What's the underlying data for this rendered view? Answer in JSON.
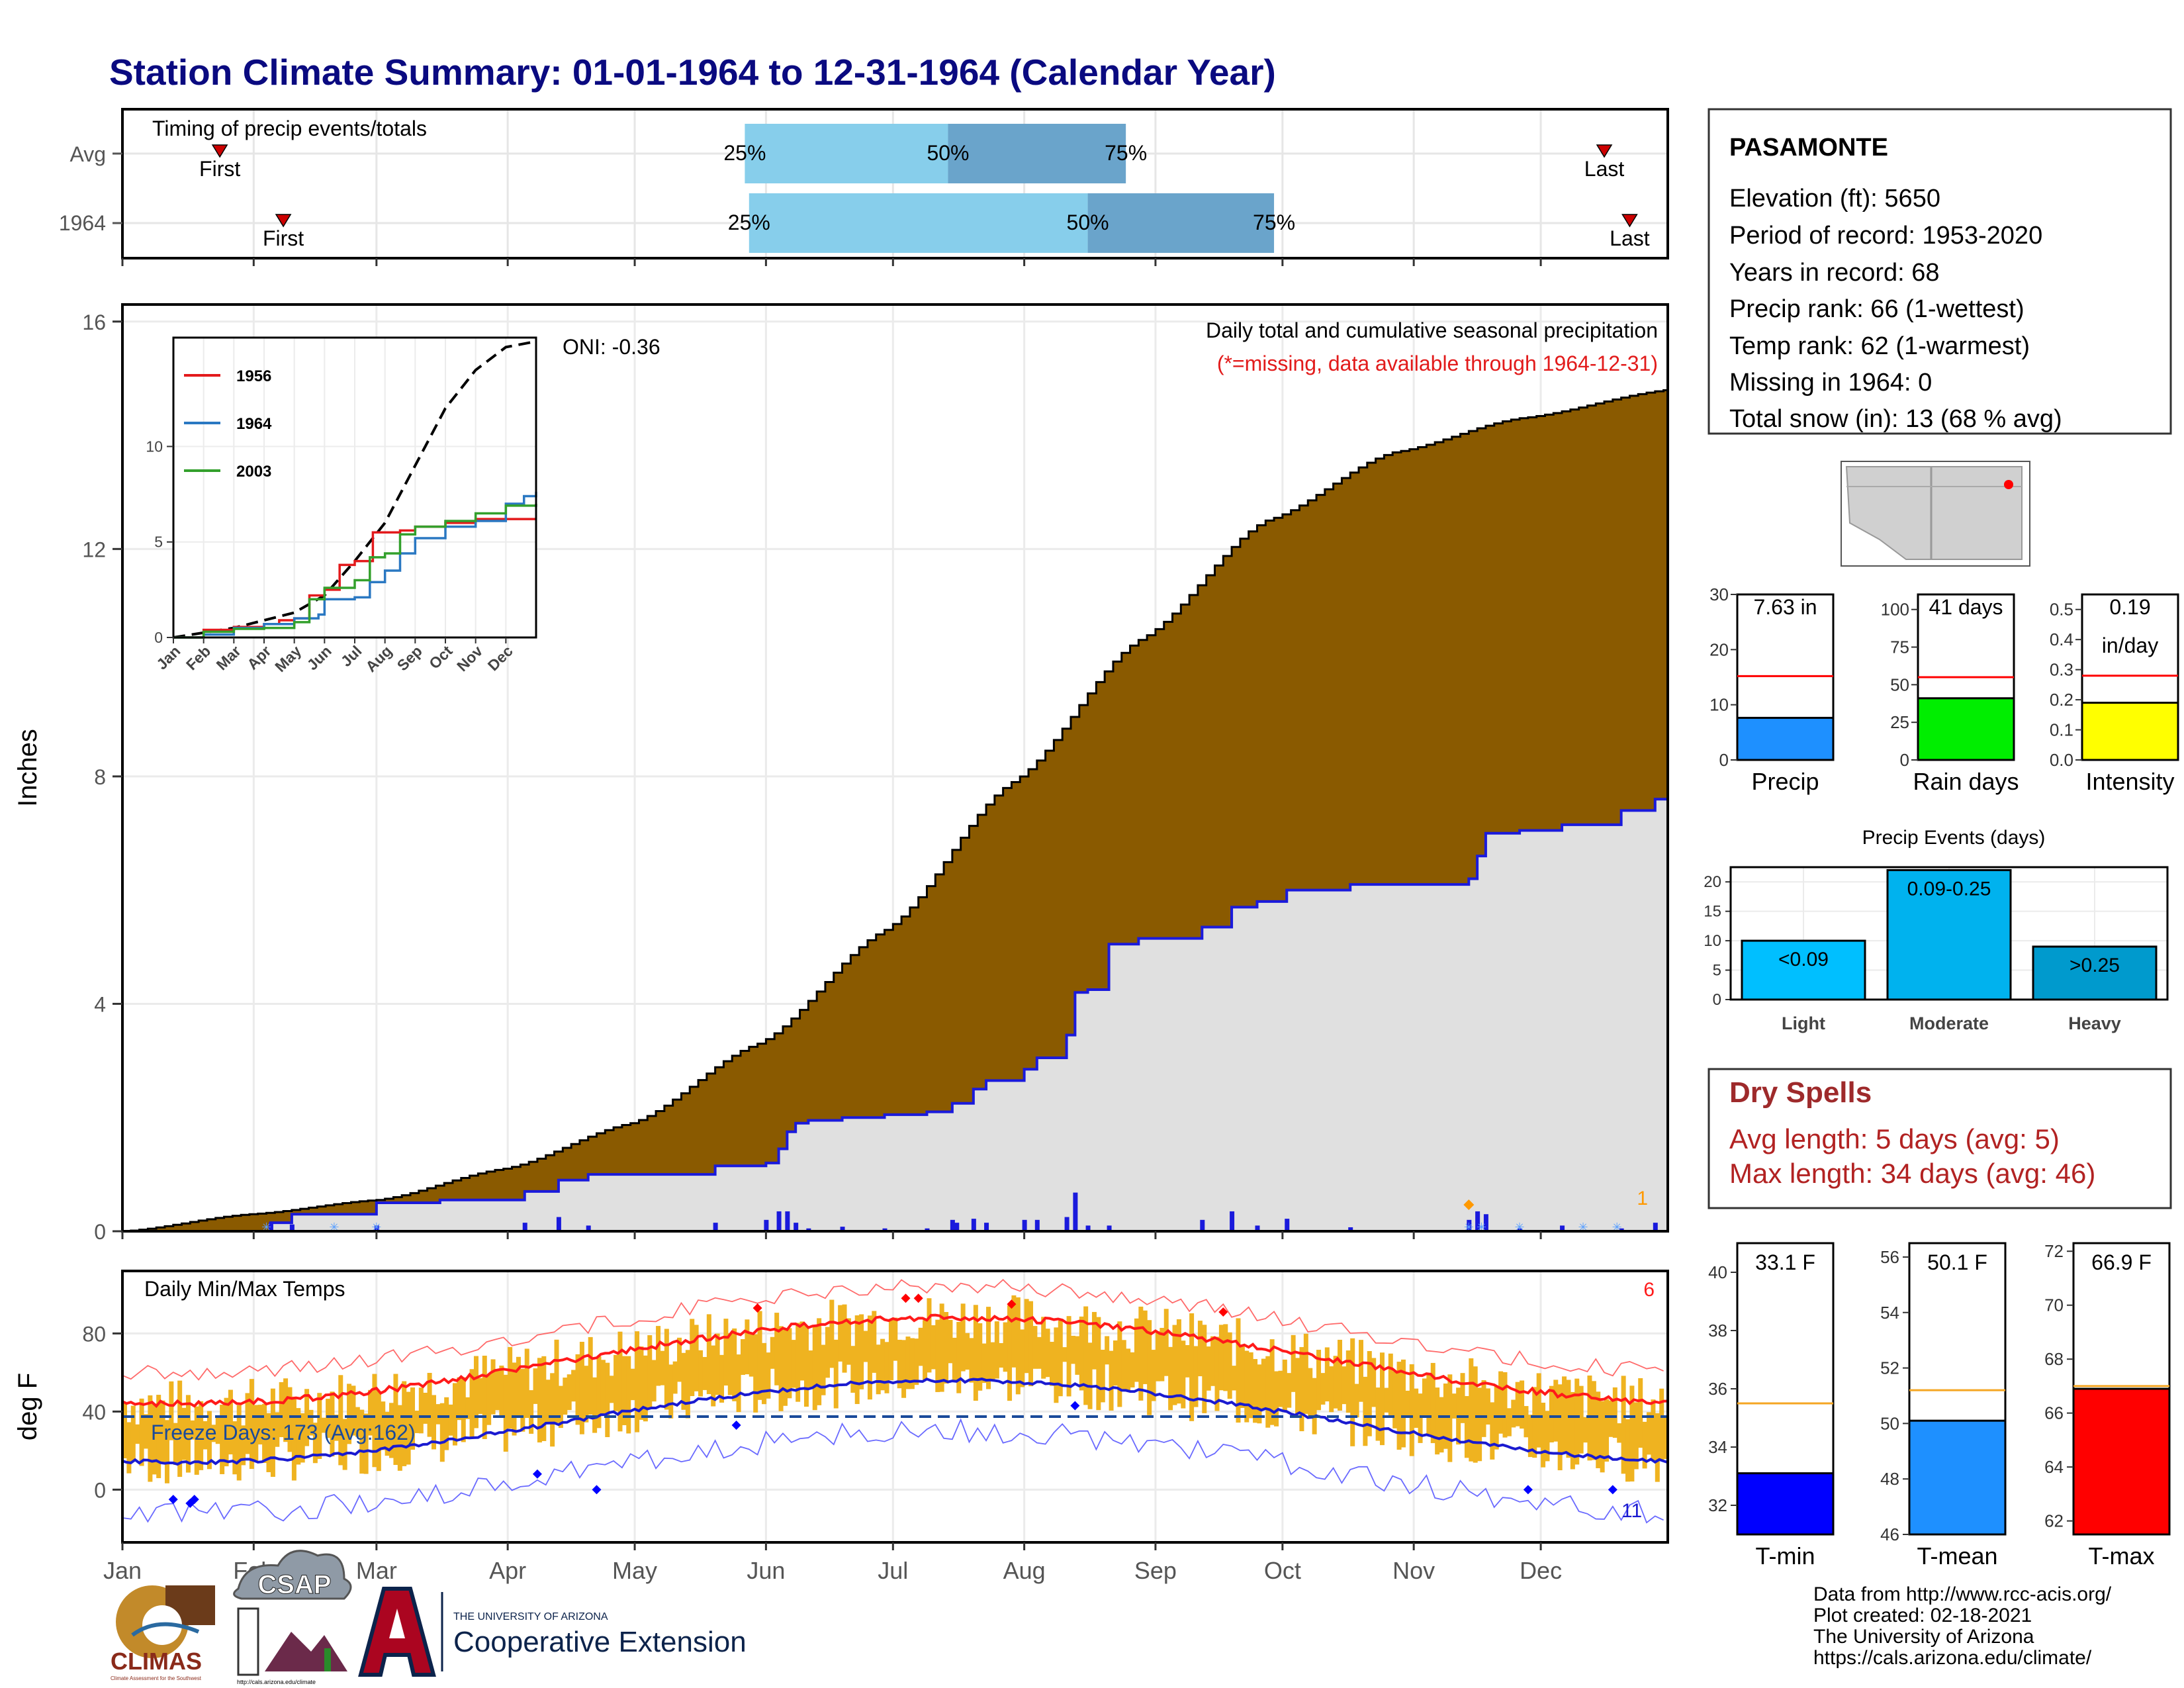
{
  "title": "Station Climate Summary: 01-01-1964 to 12-31-1964 (Calendar Year)",
  "colors": {
    "title": "#0a0a80",
    "cum_avg": "#8a5a00",
    "cum_year": "#e0e0e0",
    "cum_year_line": "#1a1adc",
    "daily_bar": "#1a1adc",
    "temp_bar": "#efb320",
    "max_norm": "#ff1a1a",
    "min_norm": "#1a1ad0",
    "timing_light": "#87ceeb",
    "timing_dark": "#6aa4cb",
    "dry_red": "#9e2a2b",
    "missing_note": "#e21b1b"
  },
  "timing": {
    "title": "Timing of precip events/totals",
    "rows": [
      {
        "label": "Avg",
        "first_doy": 23,
        "last_doy": 350,
        "p25": 147,
        "p50": 195,
        "p75": 237,
        "first_label": "First",
        "last_label": "Last"
      },
      {
        "label": "1964",
        "first_doy": 38,
        "last_doy": 356,
        "p25": 148,
        "p50": 228,
        "p75": 272,
        "first_label": "First",
        "last_label": "Last"
      }
    ],
    "pct_labels": [
      "25%",
      "50%",
      "75%"
    ]
  },
  "precip": {
    "ylabel": "Inches",
    "yticks": [
      0,
      4,
      8,
      12,
      16
    ],
    "title_line1": "Daily total and cumulative seasonal precipitation",
    "title_line2": "(*=missing, data available through 1964-12-31)",
    "oni": "ONI: -0.36",
    "snow_count": "1",
    "avg_cum_knots": [
      [
        0,
        0
      ],
      [
        30,
        0.3
      ],
      [
        60,
        0.55
      ],
      [
        90,
        1.1
      ],
      [
        120,
        1.9
      ],
      [
        150,
        3.3
      ],
      [
        180,
        5.3
      ],
      [
        210,
        7.9
      ],
      [
        240,
        10.4
      ],
      [
        270,
        12.5
      ],
      [
        300,
        13.7
      ],
      [
        330,
        14.3
      ],
      [
        365,
        14.8
      ]
    ],
    "year_cum_steps": [
      [
        0,
        0
      ],
      [
        35,
        0.15
      ],
      [
        40,
        0.3
      ],
      [
        60,
        0.5
      ],
      [
        75,
        0.55
      ],
      [
        95,
        0.7
      ],
      [
        103,
        0.9
      ],
      [
        110,
        1.0
      ],
      [
        140,
        1.15
      ],
      [
        152,
        1.2
      ],
      [
        155,
        1.45
      ],
      [
        157,
        1.75
      ],
      [
        159,
        1.9
      ],
      [
        162,
        1.95
      ],
      [
        170,
        2.0
      ],
      [
        180,
        2.05
      ],
      [
        190,
        2.1
      ],
      [
        196,
        2.25
      ],
      [
        201,
        2.5
      ],
      [
        204,
        2.65
      ],
      [
        213,
        2.85
      ],
      [
        216,
        3.05
      ],
      [
        223,
        3.45
      ],
      [
        225,
        4.2
      ],
      [
        228,
        4.25
      ],
      [
        233,
        5.05
      ],
      [
        240,
        5.15
      ],
      [
        255,
        5.35
      ],
      [
        262,
        5.7
      ],
      [
        268,
        5.8
      ],
      [
        275,
        6.0
      ],
      [
        290,
        6.1
      ],
      [
        318,
        6.2
      ],
      [
        320,
        6.6
      ],
      [
        322,
        7.0
      ],
      [
        330,
        7.05
      ],
      [
        340,
        7.15
      ],
      [
        354,
        7.4
      ],
      [
        362,
        7.6
      ],
      [
        365,
        7.63
      ]
    ],
    "daily_bars": [
      [
        35,
        0.15
      ],
      [
        40,
        0.12
      ],
      [
        60,
        0.1
      ],
      [
        95,
        0.15
      ],
      [
        103,
        0.25
      ],
      [
        110,
        0.1
      ],
      [
        140,
        0.15
      ],
      [
        152,
        0.2
      ],
      [
        155,
        0.35
      ],
      [
        157,
        0.35
      ],
      [
        159,
        0.15
      ],
      [
        162,
        0.05
      ],
      [
        170,
        0.08
      ],
      [
        180,
        0.05
      ],
      [
        190,
        0.05
      ],
      [
        196,
        0.2
      ],
      [
        197,
        0.15
      ],
      [
        201,
        0.22
      ],
      [
        204,
        0.15
      ],
      [
        213,
        0.2
      ],
      [
        216,
        0.2
      ],
      [
        223,
        0.25
      ],
      [
        225,
        0.68
      ],
      [
        228,
        0.1
      ],
      [
        233,
        0.1
      ],
      [
        255,
        0.2
      ],
      [
        262,
        0.35
      ],
      [
        268,
        0.1
      ],
      [
        275,
        0.22
      ],
      [
        290,
        0.07
      ],
      [
        318,
        0.2
      ],
      [
        320,
        0.35
      ],
      [
        322,
        0.3
      ],
      [
        330,
        0.05
      ],
      [
        340,
        0.1
      ],
      [
        354,
        0.05
      ],
      [
        362,
        0.15
      ]
    ],
    "snow_doy": [
      34,
      50,
      60,
      318,
      321,
      330,
      345,
      353
    ]
  },
  "inset": {
    "legend": [
      {
        "name": "1956",
        "color": "#e31a1c"
      },
      {
        "name": "1964",
        "color": "#2a78c2"
      },
      {
        "name": "2003",
        "color": "#33a02c"
      }
    ],
    "yticks": [
      0,
      5,
      10
    ],
    "months": [
      "Jan",
      "Feb",
      "Mar",
      "Apr",
      "May",
      "Jun",
      "Jul",
      "Aug",
      "Sep",
      "Oct",
      "Nov",
      "Dec"
    ],
    "avg_knots": [
      [
        0,
        0
      ],
      [
        2,
        0.5
      ],
      [
        4,
        1.3
      ],
      [
        5,
        2.2
      ],
      [
        6,
        4.0
      ],
      [
        7,
        6.0
      ],
      [
        8,
        9.0
      ],
      [
        9,
        12.0
      ],
      [
        10,
        14.0
      ],
      [
        11,
        15.2
      ],
      [
        12,
        15.5
      ]
    ],
    "series": {
      "1956": [
        [
          0,
          0
        ],
        [
          1,
          0.4
        ],
        [
          2,
          0.55
        ],
        [
          3,
          0.7
        ],
        [
          3.5,
          0.9
        ],
        [
          4,
          1.0
        ],
        [
          4.5,
          2.2
        ],
        [
          5,
          2.5
        ],
        [
          5.5,
          3.8
        ],
        [
          6,
          4.0
        ],
        [
          6.6,
          5.5
        ],
        [
          7.5,
          5.6
        ],
        [
          8,
          5.8
        ],
        [
          9,
          6.0
        ],
        [
          10,
          6.2
        ],
        [
          12,
          6.2
        ]
      ],
      "1964": [
        [
          0,
          0
        ],
        [
          1,
          0.15
        ],
        [
          2,
          0.5
        ],
        [
          3,
          0.7
        ],
        [
          4,
          1.0
        ],
        [
          4.8,
          1.2
        ],
        [
          5,
          2.0
        ],
        [
          6,
          2.1
        ],
        [
          6.5,
          2.9
        ],
        [
          7,
          3.5
        ],
        [
          7.5,
          4.4
        ],
        [
          8,
          5.2
        ],
        [
          9,
          5.8
        ],
        [
          10,
          6.1
        ],
        [
          11,
          7.0
        ],
        [
          11.6,
          7.4
        ],
        [
          12,
          7.63
        ]
      ],
      "2003": [
        [
          0,
          0
        ],
        [
          1,
          0.3
        ],
        [
          2,
          0.45
        ],
        [
          3,
          0.5
        ],
        [
          4,
          0.8
        ],
        [
          4.5,
          2.0
        ],
        [
          5,
          2.6
        ],
        [
          6,
          3.0
        ],
        [
          6.5,
          4.2
        ],
        [
          7,
          4.4
        ],
        [
          7.5,
          5.4
        ],
        [
          8,
          5.8
        ],
        [
          9,
          6.1
        ],
        [
          10,
          6.5
        ],
        [
          11,
          6.9
        ],
        [
          12,
          7.0
        ]
      ]
    }
  },
  "temps": {
    "title": "Daily Min/Max Temps",
    "ylabel": "deg F",
    "yticks": [
      0,
      40,
      80
    ],
    "freeze": "Freeze Days: 173 (Avg:162)",
    "hot_count": "6",
    "cold_count": "11",
    "months": [
      "Jan",
      "Feb",
      "Mar",
      "Apr",
      "May",
      "Jun",
      "Jul",
      "Aug",
      "Sep",
      "Oct",
      "Nov",
      "Dec"
    ]
  },
  "station": {
    "name": "PASAMONTE",
    "lines": [
      "Elevation (ft): 5650",
      "Period of record: 1953-2020",
      "Years in record: 68",
      "Precip rank: 66 (1-wettest)",
      "Temp rank: 62 (1-warmest)",
      "Missing in 1964: 0",
      "Total snow (in): 13 (68 % avg)"
    ]
  },
  "mini_bars": [
    {
      "label": "Precip",
      "value": 7.63,
      "avg": 15.2,
      "max": 30,
      "ticks": [
        0,
        10,
        20,
        30
      ],
      "text": "7.63 in",
      "color": "#1e90ff"
    },
    {
      "label": "Rain days",
      "value": 41,
      "avg": 55,
      "max": 110,
      "ticks": [
        0,
        25,
        50,
        75,
        100
      ],
      "text": "41 days",
      "color": "#00ee00"
    },
    {
      "label": "Intensity",
      "value": 0.19,
      "avg": 0.28,
      "max": 0.55,
      "ticks": [
        "0.0",
        "0.1",
        "0.2",
        "0.3",
        "0.4",
        "0.5"
      ],
      "text": "0.19",
      "text2": "in/day",
      "color": "#ffff00"
    }
  ],
  "events": {
    "title": "Precip Events (days)",
    "yticks": [
      0,
      5,
      10,
      15,
      20
    ],
    "bars": [
      {
        "cat": "Light",
        "value": 10,
        "label": "<0.09",
        "color": "#00bfff"
      },
      {
        "cat": "Moderate",
        "value": 22,
        "label": "0.09-0.25",
        "color": "#00b2ee"
      },
      {
        "cat": "Heavy",
        "value": 9,
        "label": ">0.25",
        "color": "#009acd"
      }
    ]
  },
  "dry": {
    "title": "Dry Spells",
    "line1": "Avg length: 5 days (avg: 5)",
    "line2": "Max length: 34 days (avg: 46)"
  },
  "temp_bars": [
    {
      "label": "T-min",
      "value": 33.1,
      "avg": 35.5,
      "min": 31,
      "max": 41,
      "ticks": [
        32,
        34,
        36,
        38,
        40
      ],
      "text": "33.1 F",
      "color": "#0000ff"
    },
    {
      "label": "T-mean",
      "value": 50.1,
      "avg": 51.2,
      "min": 46,
      "max": 56.5,
      "ticks": [
        46,
        48,
        50,
        52,
        54,
        56
      ],
      "text": "50.1 F",
      "color": "#1e90ff"
    },
    {
      "label": "T-max",
      "value": 66.9,
      "avg": 67,
      "min": 61.5,
      "max": 72.3,
      "ticks": [
        62,
        64,
        66,
        68,
        70,
        72
      ],
      "text": "66.9 F",
      "color": "#ff0000"
    }
  ],
  "footer": {
    "lines": [
      "Data from http://www.rcc-acis.org/",
      "Plot created: 02-18-2021",
      "The University of Arizona",
      "https://cals.arizona.edu/climate/"
    ],
    "logo_climas": "CLIMAS",
    "logo_climas_sub": "Climate Assessment for the Southwest",
    "logo_csap": "CSAP",
    "logo_csap_url": "http://cals.arizona.edu/climate",
    "logo_ua_top": "THE UNIVERSITY OF ARIZONA",
    "logo_ua_main": "Cooperative Extension"
  }
}
